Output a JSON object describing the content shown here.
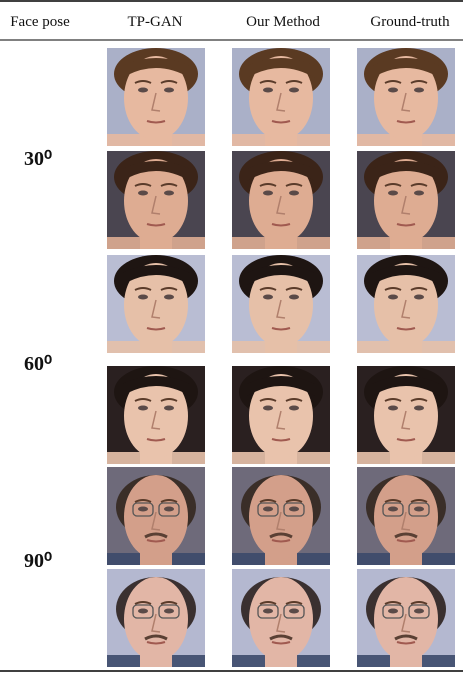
{
  "header": {
    "columns": [
      "Face pose",
      "TP-GAN",
      "Our Method",
      "Ground-truth"
    ]
  },
  "groups": [
    {
      "label": "30⁰"
    },
    {
      "label": "60⁰"
    },
    {
      "label": "90⁰"
    }
  ]
}
